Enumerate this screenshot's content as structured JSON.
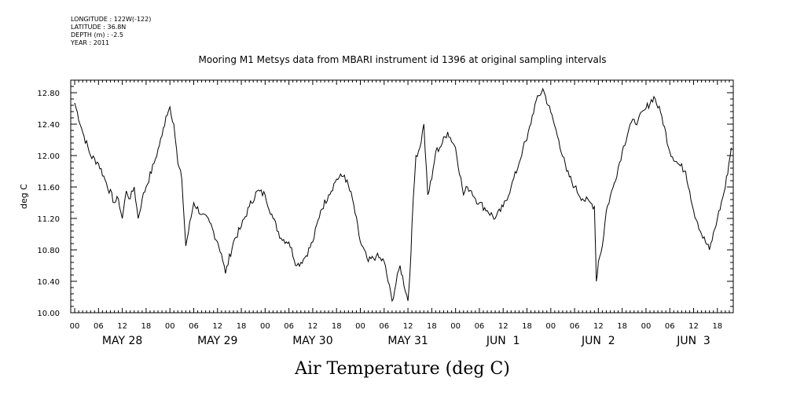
{
  "header": {
    "longitude": "LONGITUDE : 122W(-122)",
    "latitude": "LATITUDE : 36.8N",
    "depth": "DEPTH (m) : -2.5",
    "year": "YEAR : 2011"
  },
  "chart_data": {
    "type": "line",
    "title": "Mooring M1 Metsys data from MBARI instrument id 1396 at original sampling intervals",
    "xlabel": "Air Temperature (deg C)",
    "ylabel": "deg C",
    "ylim": [
      10.0,
      12.96
    ],
    "xlim_hours": [
      -1,
      166
    ],
    "y_ticks": [
      "10.00",
      "10.40",
      "10.80",
      "11.20",
      "11.60",
      "12.00",
      "12.40",
      "12.80"
    ],
    "hour_ticks": [
      "00",
      "06",
      "12",
      "18",
      "00",
      "06",
      "12",
      "18",
      "00",
      "06",
      "12",
      "18",
      "00",
      "06",
      "12",
      "18",
      "00",
      "06",
      "12",
      "18",
      "00",
      "06",
      "12",
      "18",
      "00",
      "06",
      "12",
      "18"
    ],
    "day_labels": [
      "MAY 28",
      "MAY 29",
      "MAY 30",
      "MAY 31",
      "JUN  1",
      "JUN  2",
      "JUN  3"
    ],
    "grid": false,
    "series": [
      {
        "x": [
          0,
          2,
          4,
          6,
          8,
          10,
          11,
          12,
          13,
          14,
          15,
          16,
          17,
          18,
          20,
          22,
          23,
          24,
          25,
          26,
          27,
          28,
          30,
          32,
          34,
          36,
          37,
          38,
          40,
          42,
          44,
          46,
          48,
          50,
          52,
          54,
          56,
          58,
          60,
          62,
          64,
          66,
          68,
          70,
          72,
          74,
          76,
          78,
          80,
          82,
          84,
          84.5,
          85,
          86,
          87,
          88,
          89,
          90,
          91,
          92,
          94,
          96,
          98,
          99,
          100,
          101,
          102,
          104,
          106,
          108,
          110,
          112,
          113,
          114,
          116,
          118,
          120,
          122,
          124,
          126,
          128,
          130,
          131,
          131.5,
          132,
          133,
          134,
          136,
          138,
          140,
          142,
          144,
          146,
          148,
          150,
          152,
          154,
          155,
          156,
          157,
          158,
          160,
          162,
          164,
          165.5
        ],
        "y": [
          12.67,
          12.3,
          12.0,
          11.9,
          11.65,
          11.4,
          11.45,
          11.2,
          11.55,
          11.45,
          11.6,
          11.2,
          11.45,
          11.6,
          11.9,
          12.25,
          12.5,
          12.62,
          12.4,
          11.9,
          11.7,
          10.85,
          11.4,
          11.25,
          11.15,
          10.9,
          10.75,
          10.5,
          10.9,
          11.1,
          11.35,
          11.55,
          11.5,
          11.2,
          10.95,
          10.9,
          10.6,
          10.7,
          10.9,
          11.3,
          11.5,
          11.7,
          11.75,
          11.45,
          10.9,
          10.65,
          10.72,
          10.65,
          10.15,
          10.6,
          10.15,
          10.5,
          11.1,
          12.0,
          12.1,
          12.4,
          11.5,
          11.7,
          12.05,
          12.1,
          12.3,
          12.1,
          11.5,
          11.6,
          11.55,
          11.45,
          11.4,
          11.3,
          11.2,
          11.35,
          11.6,
          11.9,
          12.1,
          12.2,
          12.65,
          12.85,
          12.55,
          12.2,
          11.8,
          11.6,
          11.45,
          11.4,
          11.35,
          10.4,
          10.65,
          10.85,
          11.3,
          11.65,
          12.05,
          12.4,
          12.45,
          12.6,
          12.75,
          12.5,
          12.05,
          11.9,
          11.8,
          11.55,
          11.3,
          11.15,
          11.0,
          10.8,
          11.2,
          11.6,
          12.1
        ]
      }
    ]
  }
}
